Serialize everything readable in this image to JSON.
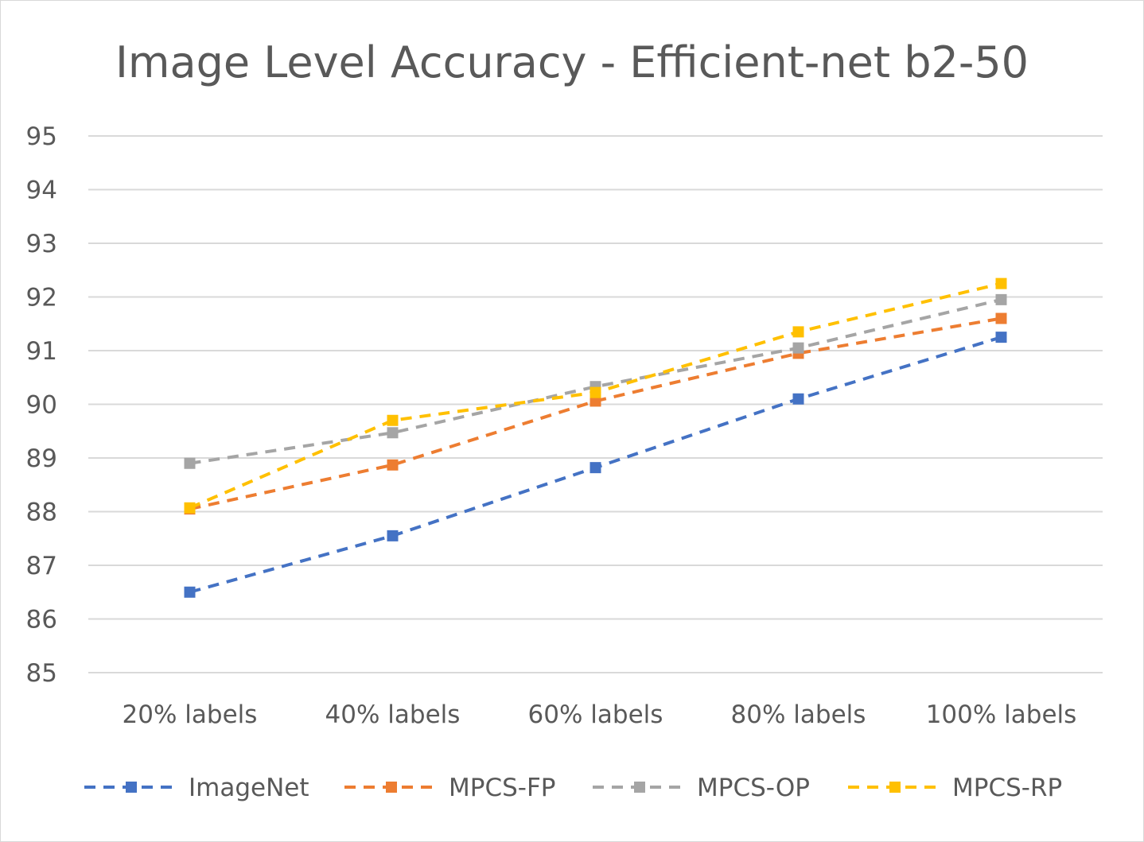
{
  "chart_data": {
    "type": "line",
    "title": "Image Level Accuracy - Efficient-net b2-50",
    "xlabel": "",
    "ylabel": "",
    "categories": [
      "20% labels",
      "40% labels",
      "60% labels",
      "80% labels",
      "100% labels"
    ],
    "ylim": [
      85,
      95
    ],
    "yticks": [
      85,
      86,
      87,
      88,
      89,
      90,
      91,
      92,
      93,
      94,
      95
    ],
    "grid": true,
    "legend_position": "bottom",
    "line_style": "dashed",
    "marker": "square",
    "series": [
      {
        "name": "ImageNet",
        "color": "#4472C4",
        "values": [
          86.5,
          87.55,
          88.82,
          90.1,
          91.25
        ]
      },
      {
        "name": "MPCS-FP",
        "color": "#ED7D31",
        "values": [
          88.05,
          88.87,
          90.06,
          90.95,
          91.6
        ]
      },
      {
        "name": "MPCS-OP",
        "color": "#A5A5A5",
        "values": [
          88.9,
          89.47,
          90.33,
          91.05,
          91.95
        ]
      },
      {
        "name": "MPCS-RP",
        "color": "#FFC000",
        "values": [
          88.07,
          89.7,
          90.22,
          91.35,
          92.25
        ]
      }
    ]
  }
}
